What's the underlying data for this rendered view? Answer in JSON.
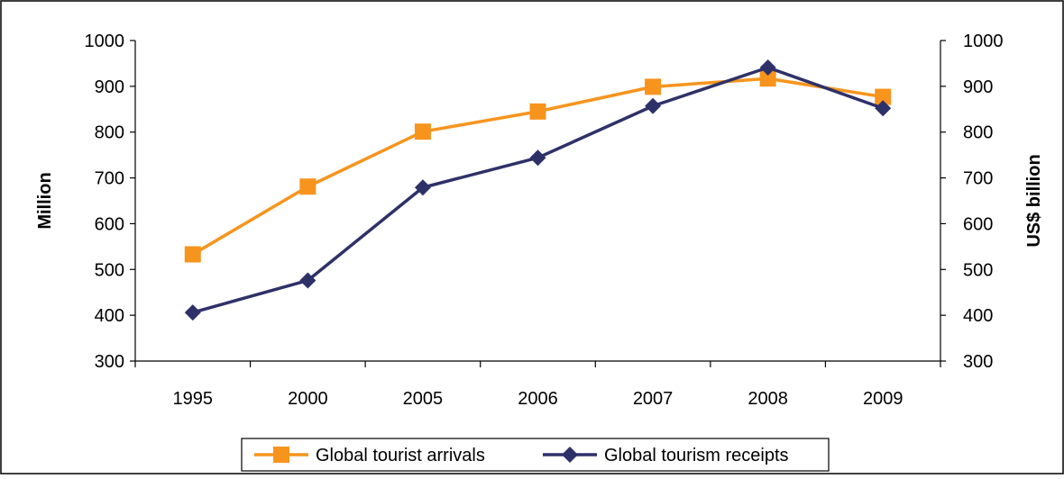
{
  "chart_data": {
    "type": "line",
    "categories": [
      "1995",
      "2000",
      "2005",
      "2006",
      "2007",
      "2008",
      "2009"
    ],
    "y_left": {
      "label": "Million",
      "ylim": [
        300,
        1000
      ],
      "ticks": [
        300,
        400,
        500,
        600,
        700,
        800,
        900,
        1000
      ]
    },
    "y_right": {
      "label": "US$ billion",
      "ylim": [
        300,
        1000
      ],
      "ticks": [
        300,
        400,
        500,
        600,
        700,
        800,
        900,
        1000
      ]
    },
    "series": [
      {
        "name": "Global tourist arrivals",
        "axis": "left",
        "marker": "square",
        "color": "#F7941D",
        "values": [
          533,
          681,
          801,
          845,
          899,
          917,
          877
        ]
      },
      {
        "name": "Global tourism receipts",
        "axis": "right",
        "marker": "diamond",
        "color": "#2E3168",
        "values": [
          406,
          476,
          679,
          744,
          857,
          941,
          852
        ]
      }
    ],
    "grid": false,
    "legend_position": "bottom-center"
  }
}
